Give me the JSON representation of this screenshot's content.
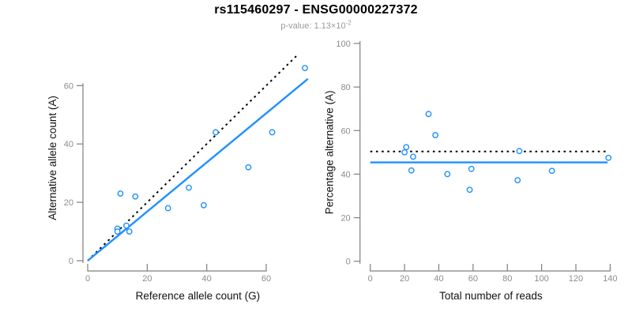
{
  "header": {
    "title": "rs115460297 - ENSG00000227372",
    "pvalue_label": "p-value: ",
    "pvalue_base": "1.13×10",
    "pvalue_exponent": "-2"
  },
  "colors": {
    "accent_blue": "#1E90FF",
    "dotted_line": "#000000",
    "axis_line": "#7f7f7f",
    "tick_label": "#8c8c8c",
    "axis_title": "#111111",
    "subtitle_gray": "#9a9a9a"
  },
  "chart_data": [
    {
      "type": "scatter",
      "panel": "left",
      "xlabel": "Reference allele count (G)",
      "ylabel": "Alternative allele count (A)",
      "xticks": [
        0,
        20,
        40,
        60
      ],
      "yticks": [
        0,
        20,
        40,
        60
      ],
      "xlim": [
        0,
        74
      ],
      "ylim": [
        0,
        70.4
      ],
      "marker": "open-circle",
      "grid": false,
      "legend": "none",
      "points": [
        [
          10,
          11
        ],
        [
          10,
          10
        ],
        [
          13,
          12
        ],
        [
          14,
          10
        ],
        [
          11,
          23
        ],
        [
          16,
          22
        ],
        [
          27,
          18
        ],
        [
          34,
          25
        ],
        [
          39,
          19
        ],
        [
          43,
          44
        ],
        [
          54,
          32
        ],
        [
          62,
          44
        ],
        [
          73,
          66
        ]
      ],
      "lines": [
        {
          "name": "expected-50-50",
          "style": "dotted",
          "color": "black",
          "from": [
            0,
            0
          ],
          "to": [
            70.4,
            70.4
          ]
        },
        {
          "name": "fit",
          "style": "solid",
          "color": "blue",
          "slope": 0.84,
          "from": [
            0,
            0
          ],
          "to": [
            74,
            62.3
          ]
        }
      ]
    },
    {
      "type": "scatter",
      "panel": "right",
      "xlabel": "Total number of reads",
      "ylabel": "Percentage alternative (A)",
      "xticks": [
        0,
        20,
        40,
        60,
        80,
        100,
        120,
        140
      ],
      "yticks": [
        0,
        20,
        40,
        60,
        80,
        100
      ],
      "xlim": [
        0,
        140.8
      ],
      "ylim": [
        0,
        100
      ],
      "marker": "open-circle",
      "grid": false,
      "legend": "none",
      "points": [
        [
          21,
          52.4
        ],
        [
          20,
          50
        ],
        [
          25,
          48
        ],
        [
          24,
          41.7
        ],
        [
          34,
          67.6
        ],
        [
          38,
          57.9
        ],
        [
          45,
          40
        ],
        [
          59,
          42.4
        ],
        [
          58,
          32.8
        ],
        [
          87,
          50.6
        ],
        [
          86,
          37.2
        ],
        [
          106,
          41.5
        ],
        [
          139,
          47.5
        ]
      ],
      "lines": [
        {
          "name": "expected-50-percent",
          "style": "dotted",
          "color": "black",
          "from": [
            0,
            50.4
          ],
          "to": [
            138.5,
            50.4
          ]
        },
        {
          "name": "fit",
          "style": "solid",
          "color": "blue",
          "value": 45.4,
          "from": [
            0,
            45.4
          ],
          "to": [
            138.5,
            45.4
          ]
        }
      ]
    }
  ]
}
